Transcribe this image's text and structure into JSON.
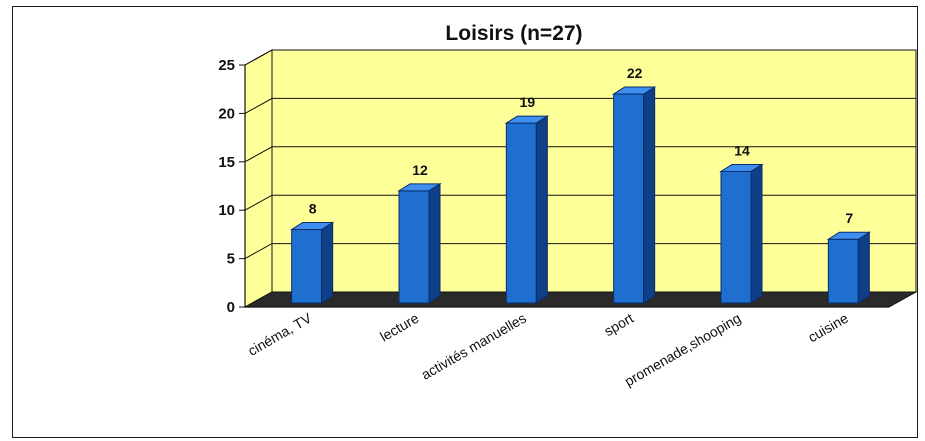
{
  "chart_data": {
    "type": "bar",
    "title": "Loisirs (n=27)",
    "categories": [
      "cinéma, TV",
      "lecture",
      "activités manuelles",
      "sport",
      "promenade,shooping",
      "cuisine"
    ],
    "values": [
      8,
      12,
      19,
      22,
      14,
      7
    ],
    "data_labels": [
      "8",
      "12",
      "19",
      "22",
      "14",
      "7"
    ],
    "ylim": [
      0,
      25
    ],
    "yticks": [
      "0",
      "5",
      "10",
      "15",
      "20",
      "25"
    ],
    "xlabel": "",
    "ylabel": "",
    "grid": true,
    "legend": "none",
    "style": "3d",
    "colors": {
      "bar_front": "#1f6fd1",
      "bar_side": "#0f3f86",
      "bar_top": "#3f8ff0",
      "wall": "#ffff9a",
      "floor": "#2a2a2a",
      "grid": "#111111"
    }
  }
}
